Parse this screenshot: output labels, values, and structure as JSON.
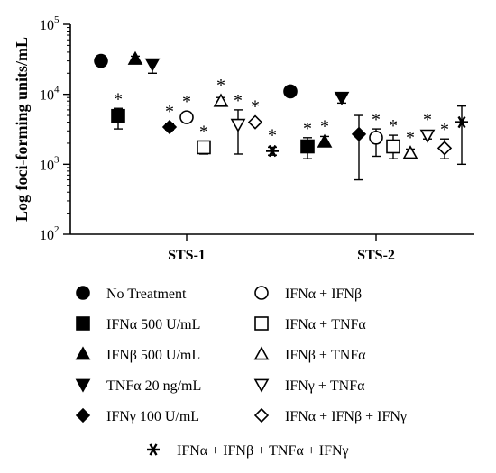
{
  "chart_data": {
    "type": "scatter",
    "ylabel": "Log foci-forming units/mL",
    "yscale": "log",
    "ylim": [
      100,
      100000
    ],
    "yticks": [
      {
        "value": 100,
        "base": "10",
        "exp": "2"
      },
      {
        "value": 1000,
        "base": "10",
        "exp": "3"
      },
      {
        "value": 10000,
        "base": "10",
        "exp": "4"
      },
      {
        "value": 100000,
        "base": "10",
        "exp": "5"
      }
    ],
    "categories": [
      "STS-1",
      "STS-2"
    ],
    "grid": false,
    "legend_position": "below",
    "star_symbol": "*",
    "series": [
      {
        "name": "No Treatment",
        "marker": "circle",
        "filled": true,
        "values": [
          30000,
          11000
        ],
        "err_low": [
          null,
          null
        ],
        "err_high": [
          null,
          null
        ],
        "significant": [
          false,
          false
        ]
      },
      {
        "name": "IFNα 500 U/mL",
        "marker": "square",
        "filled": true,
        "values": [
          4900,
          1800
        ],
        "err_low": [
          3200,
          1200
        ],
        "err_high": [
          6300,
          2400
        ],
        "significant": [
          true,
          true
        ]
      },
      {
        "name": "IFNβ 500 U/mL",
        "marker": "triangle-up",
        "filled": true,
        "values": [
          32000,
          2100
        ],
        "err_low": [
          30000,
          1800
        ],
        "err_high": [
          35000,
          2500
        ],
        "significant": [
          false,
          true
        ]
      },
      {
        "name": "TNFα 20 ng/mL",
        "marker": "triangle-down",
        "filled": true,
        "values": [
          27000,
          9000
        ],
        "err_low": [
          20000,
          7500
        ],
        "err_high": [
          30000,
          10000
        ],
        "significant": [
          false,
          false
        ]
      },
      {
        "name": "IFNγ 100 U/mL",
        "marker": "diamond",
        "filled": true,
        "values": [
          3400,
          2700
        ],
        "err_low": [
          3100,
          600
        ],
        "err_high": [
          3800,
          5000
        ],
        "significant": [
          true,
          false
        ]
      },
      {
        "name": "IFNα + IFNβ",
        "marker": "circle",
        "filled": false,
        "values": [
          4700,
          2400
        ],
        "err_low": [
          null,
          1300
        ],
        "err_high": [
          null,
          3200
        ],
        "significant": [
          true,
          true
        ]
      },
      {
        "name": "IFNα + TNFα",
        "marker": "square",
        "filled": false,
        "values": [
          1750,
          1800
        ],
        "err_low": [
          1400,
          1200
        ],
        "err_high": [
          2100,
          2600
        ],
        "significant": [
          true,
          true
        ]
      },
      {
        "name": "IFNβ + TNFα",
        "marker": "triangle-up",
        "filled": false,
        "values": [
          8000,
          1450
        ],
        "err_low": [
          7000,
          1300
        ],
        "err_high": [
          9000,
          1650
        ],
        "significant": [
          true,
          true
        ]
      },
      {
        "name": "IFNγ + TNFα",
        "marker": "triangle-down",
        "filled": false,
        "values": [
          3700,
          2600
        ],
        "err_low": [
          1400,
          2300
        ],
        "err_high": [
          6000,
          2900
        ],
        "significant": [
          true,
          true
        ]
      },
      {
        "name": "IFNα + IFNβ + IFNγ",
        "marker": "diamond",
        "filled": false,
        "values": [
          4000,
          1700
        ],
        "err_low": [
          3700,
          1200
        ],
        "err_high": [
          4300,
          2300
        ],
        "significant": [
          true,
          true
        ]
      },
      {
        "name": "IFNα + IFNβ + TNFα + IFNγ",
        "marker": "asterisk",
        "filled": true,
        "values": [
          1550,
          4000
        ],
        "err_low": [
          1350,
          1000
        ],
        "err_high": [
          1750,
          6800
        ],
        "significant": [
          true,
          false
        ]
      }
    ]
  }
}
